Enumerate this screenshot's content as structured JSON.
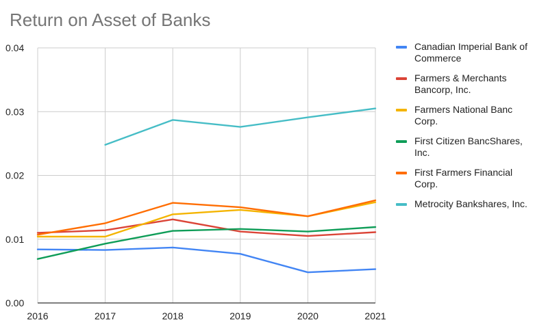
{
  "chart_data": {
    "type": "line",
    "title": "Return on Asset of Banks",
    "xlabel": "",
    "ylabel": "",
    "categories": [
      "2016",
      "2017",
      "2018",
      "2019",
      "2020",
      "2021"
    ],
    "ylim": [
      0,
      0.04
    ],
    "yticks": [
      "0.00",
      "0.01",
      "0.02",
      "0.03",
      "0.04"
    ],
    "grid": true,
    "legend_position": "right",
    "series": [
      {
        "name": "Canadian Imperial Bank of Commerce",
        "color": "#4285f4",
        "values": [
          0.0084,
          0.0083,
          0.0087,
          0.0077,
          0.0048,
          0.0053
        ]
      },
      {
        "name": "Farmers & Merchants Bancorp, Inc.",
        "color": "#db4437",
        "values": [
          0.011,
          0.0114,
          0.0131,
          0.0112,
          0.0105,
          0.0111
        ]
      },
      {
        "name": "Farmers National Banc Corp.",
        "color": "#f4b400",
        "values": [
          0.0104,
          0.0104,
          0.0139,
          0.0146,
          0.0136,
          0.0158
        ]
      },
      {
        "name": "First Citizen BancShares, Inc.",
        "color": "#0f9d58",
        "values": [
          0.0069,
          0.0093,
          0.0113,
          0.0116,
          0.0112,
          0.0119
        ]
      },
      {
        "name": "First Farmers Financial Corp.",
        "color": "#ff6d01",
        "values": [
          0.0107,
          0.0125,
          0.0157,
          0.015,
          0.0136,
          0.0161
        ]
      },
      {
        "name": "Metrocity Bankshares, Inc.",
        "color": "#46bdc6",
        "values": [
          null,
          0.0248,
          0.0287,
          0.0276,
          0.0291,
          0.0305
        ]
      }
    ]
  }
}
